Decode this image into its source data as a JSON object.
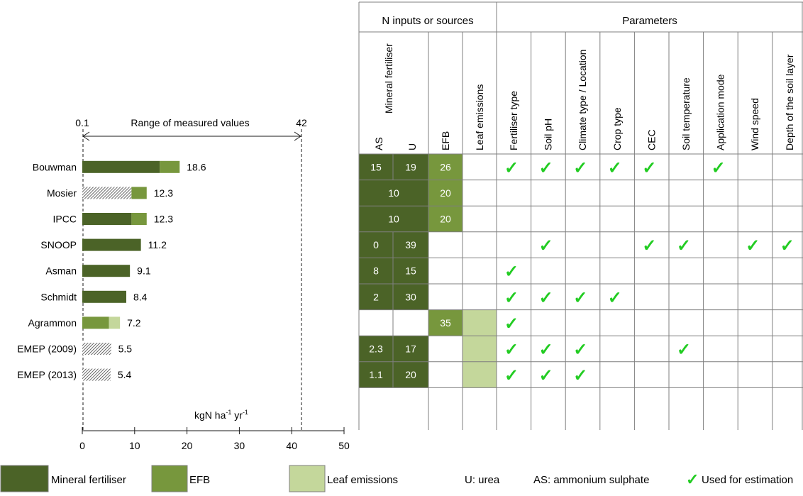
{
  "chart_data": {
    "type": "bar",
    "unit_label": "kgN ha",
    "unit_sup1": "-1",
    "unit_mid": " yr",
    "unit_sup2": "-1",
    "range_label": "Range of measured values",
    "range_min": "0.1",
    "range_max": "42",
    "range_values": [
      0.1,
      42
    ],
    "xticks": [
      "0",
      "10",
      "20",
      "30",
      "40",
      "50"
    ],
    "xtick_values": [
      0,
      10,
      20,
      30,
      40,
      50
    ],
    "xlim": [
      0,
      50
    ],
    "models": [
      {
        "name": "Bouwman",
        "total": "18.6",
        "segments": [
          {
            "kind": "mineral",
            "value": 14.8
          },
          {
            "kind": "efb",
            "value": 3.8
          }
        ]
      },
      {
        "name": "Mosier",
        "total": "12.3",
        "segments": [
          {
            "kind": "hatched",
            "value": 9.4
          },
          {
            "kind": "efb",
            "value": 2.9
          }
        ]
      },
      {
        "name": "IPCC",
        "total": "12.3",
        "segments": [
          {
            "kind": "mineral",
            "value": 9.4
          },
          {
            "kind": "efb",
            "value": 2.9
          }
        ]
      },
      {
        "name": "SNOOP",
        "total": "11.2",
        "segments": [
          {
            "kind": "mineral",
            "value": 11.2
          }
        ]
      },
      {
        "name": "Asman",
        "total": "9.1",
        "segments": [
          {
            "kind": "mineral",
            "value": 9.1
          }
        ]
      },
      {
        "name": "Schmidt",
        "total": "8.4",
        "segments": [
          {
            "kind": "mineral",
            "value": 8.4
          }
        ]
      },
      {
        "name": "Agrammon",
        "total": "7.2",
        "segments": [
          {
            "kind": "efb",
            "value": 5.1
          },
          {
            "kind": "leaf",
            "value": 2.1
          }
        ]
      },
      {
        "name": "EMEP (2009)",
        "total": "5.5",
        "segments": [
          {
            "kind": "hatched",
            "value": 5.5
          }
        ]
      },
      {
        "name": "EMEP (2013)",
        "total": "5.4",
        "segments": [
          {
            "kind": "hatched",
            "value": 5.4
          }
        ]
      }
    ]
  },
  "table": {
    "inputs_header": "N inputs or sources",
    "params_header": "Parameters",
    "mineral_header": "Mineral fertiliser",
    "as_header": "AS",
    "u_header": "U",
    "efb_header": "EFB",
    "leaf_header": "Leaf emissions",
    "params": [
      "Fertiliser type",
      "Soil pH",
      "Climate type / Location",
      "Crop type",
      "CEC",
      "Soil temperature",
      "Application mode",
      "Wind speed",
      "Depth of the soil layer"
    ],
    "check_symbol": "✓",
    "rows": [
      {
        "as": "15",
        "u": "19",
        "merged": "",
        "efb": "26",
        "leaf": false,
        "checks": [
          true,
          true,
          true,
          true,
          true,
          false,
          true,
          false,
          false
        ]
      },
      {
        "as": "",
        "u": "",
        "merged": "10",
        "efb": "20",
        "leaf": false,
        "checks": [
          false,
          false,
          false,
          false,
          false,
          false,
          false,
          false,
          false
        ]
      },
      {
        "as": "",
        "u": "",
        "merged": "10",
        "efb": "20",
        "leaf": false,
        "checks": [
          false,
          false,
          false,
          false,
          false,
          false,
          false,
          false,
          false
        ]
      },
      {
        "as": "0",
        "u": "39",
        "merged": "",
        "efb": "",
        "leaf": false,
        "checks": [
          false,
          true,
          false,
          false,
          true,
          true,
          false,
          true,
          true
        ]
      },
      {
        "as": "8",
        "u": "15",
        "merged": "",
        "efb": "",
        "leaf": false,
        "checks": [
          true,
          false,
          false,
          false,
          false,
          false,
          false,
          false,
          false
        ]
      },
      {
        "as": "2",
        "u": "30",
        "merged": "",
        "efb": "",
        "leaf": false,
        "checks": [
          true,
          true,
          true,
          true,
          false,
          false,
          false,
          false,
          false
        ]
      },
      {
        "as": "",
        "u": "",
        "merged": "",
        "efb": "35",
        "leaf": true,
        "checks": [
          true,
          false,
          false,
          false,
          false,
          false,
          false,
          false,
          false
        ]
      },
      {
        "as": "2.3",
        "u": "17",
        "merged": "",
        "efb": "",
        "leaf": true,
        "checks": [
          true,
          true,
          true,
          false,
          false,
          true,
          false,
          false,
          false
        ]
      },
      {
        "as": "1.1",
        "u": "20",
        "merged": "",
        "efb": "",
        "leaf": true,
        "checks": [
          true,
          true,
          true,
          false,
          false,
          false,
          false,
          false,
          false
        ]
      }
    ]
  },
  "legend": {
    "mineral": "Mineral fertiliser",
    "efb": "EFB",
    "leaf": "Leaf emissions",
    "urea": "U: urea",
    "as": "AS: ammonium sulphate",
    "used": "Used for estimation"
  },
  "colors": {
    "mineral": "#4b6327",
    "efb": "#77973d",
    "leaf": "#c4d79b",
    "check": "#22cc22",
    "grid": "#7f7f7f"
  }
}
